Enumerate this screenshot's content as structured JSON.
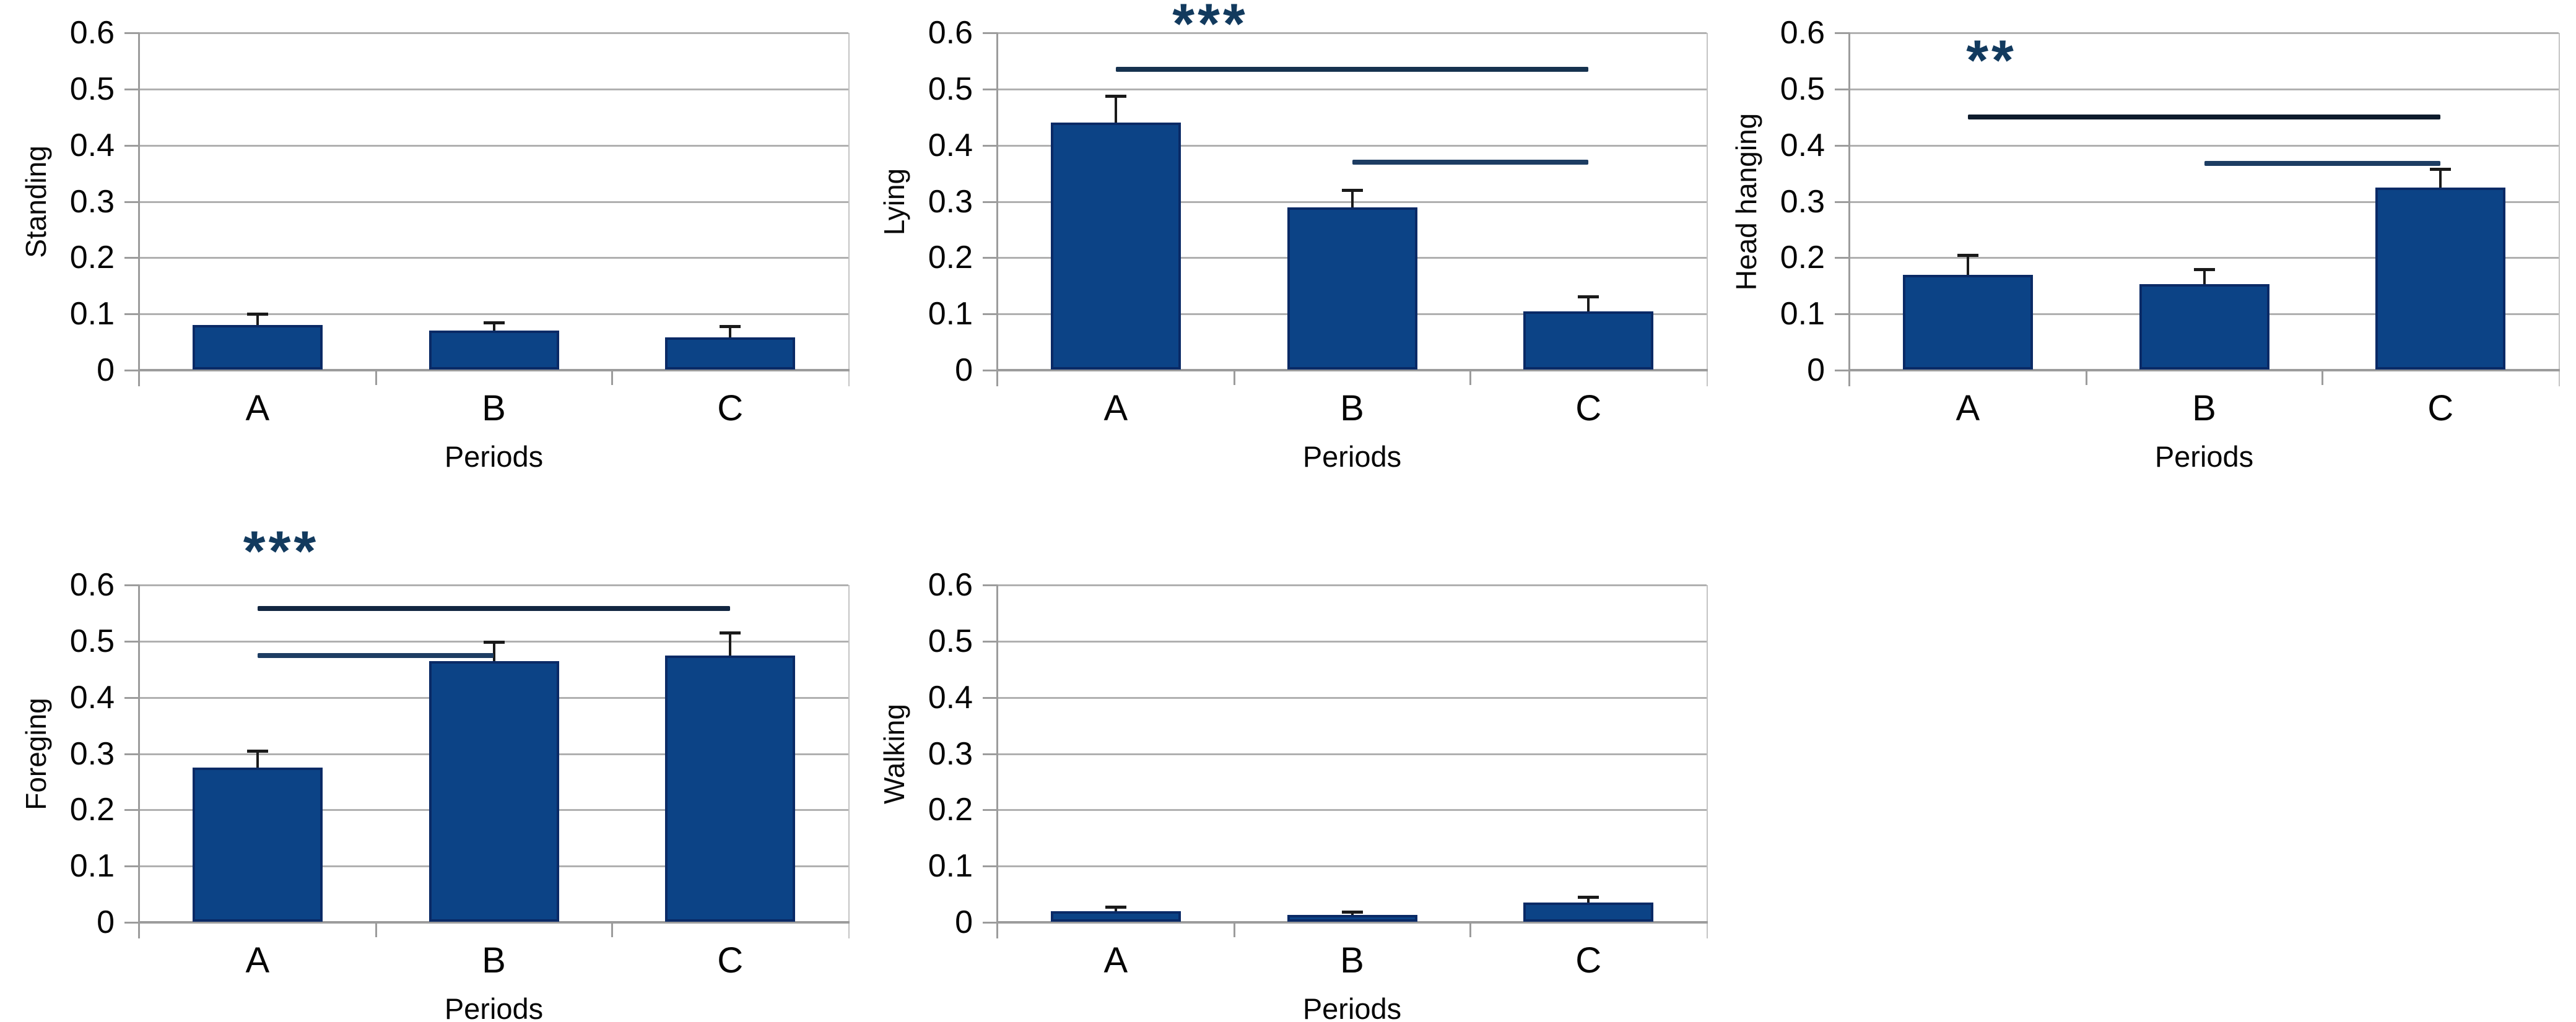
{
  "axis": {
    "y_ticks": [
      "0",
      "0.1",
      "0.2",
      "0.3",
      "0.4",
      "0.5",
      "0.6"
    ],
    "y_tick_values": [
      0,
      0.1,
      0.2,
      0.3,
      0.4,
      0.5,
      0.6
    ],
    "ylim": [
      0,
      0.6
    ],
    "x_title": "Periods"
  },
  "colors": {
    "bar_fill": "#0C4386",
    "bar_border": "#0A2A66",
    "grid": "#B0B0B0",
    "axis_line": "#9C9C9C",
    "plot_right_edge": "#C4C4C4",
    "error_bar": "#1A1A1A",
    "stars": "#123A5E",
    "text": "#000000",
    "background": "#FFFFFF"
  },
  "chart_data": [
    {
      "type": "bar",
      "ylabel": "Standing",
      "xlabel": "Periods",
      "categories": [
        "A",
        "B",
        "C"
      ],
      "values": [
        0.08,
        0.07,
        0.058
      ],
      "errors_plus": [
        0.02,
        0.015,
        0.02
      ],
      "ylim": [
        0,
        0.6
      ],
      "grid": true
    },
    {
      "type": "bar",
      "ylabel": "Lying",
      "xlabel": "Periods",
      "categories": [
        "A",
        "B",
        "C"
      ],
      "values": [
        0.44,
        0.29,
        0.105
      ],
      "errors_plus": [
        0.048,
        0.03,
        0.026
      ],
      "ylim": [
        0,
        0.6
      ],
      "grid": true,
      "significance": {
        "stars": "***",
        "stars_x_frac": 0.3,
        "stars_value": 0.615,
        "lines": [
          {
            "from": "A",
            "to": "C",
            "value": 0.535,
            "color": "#16324F"
          },
          {
            "from": "B",
            "to": "C",
            "value": 0.37,
            "color": "#1D3D63"
          }
        ]
      }
    },
    {
      "type": "bar",
      "ylabel": "Head hanging",
      "xlabel": "Periods",
      "categories": [
        "A",
        "B",
        "C"
      ],
      "values": [
        0.17,
        0.153,
        0.325
      ],
      "errors_plus": [
        0.035,
        0.026,
        0.033
      ],
      "ylim": [
        0,
        0.6
      ],
      "grid": true,
      "significance": {
        "stars": "**",
        "stars_x_frac": 0.2,
        "stars_value": 0.55,
        "lines": [
          {
            "from": "A",
            "to": "C",
            "value": 0.45,
            "color": "#0D1B2C"
          },
          {
            "from": "B",
            "to": "C",
            "value": 0.368,
            "color": "#1D3D63"
          }
        ]
      }
    },
    {
      "type": "bar",
      "ylabel": "Foreging",
      "xlabel": "Periods",
      "categories": [
        "A",
        "B",
        "C"
      ],
      "values": [
        0.275,
        0.465,
        0.475
      ],
      "errors_plus": [
        0.03,
        0.034,
        0.04
      ],
      "ylim": [
        0,
        0.6
      ],
      "grid": true,
      "significance": {
        "stars": "***",
        "stars_x_frac": 0.2,
        "stars_value": 0.66,
        "lines": [
          {
            "from": "A",
            "to": "C",
            "value": 0.558,
            "color": "#122641"
          },
          {
            "from": "A",
            "to": "B",
            "value": 0.475,
            "color": "#1D3D63"
          }
        ]
      }
    },
    {
      "type": "bar",
      "ylabel": "Walking",
      "xlabel": "Periods",
      "categories": [
        "A",
        "B",
        "C"
      ],
      "values": [
        0.02,
        0.013,
        0.035
      ],
      "errors_plus": [
        0.007,
        0.006,
        0.01
      ],
      "ylim": [
        0,
        0.6
      ],
      "grid": true
    }
  ]
}
